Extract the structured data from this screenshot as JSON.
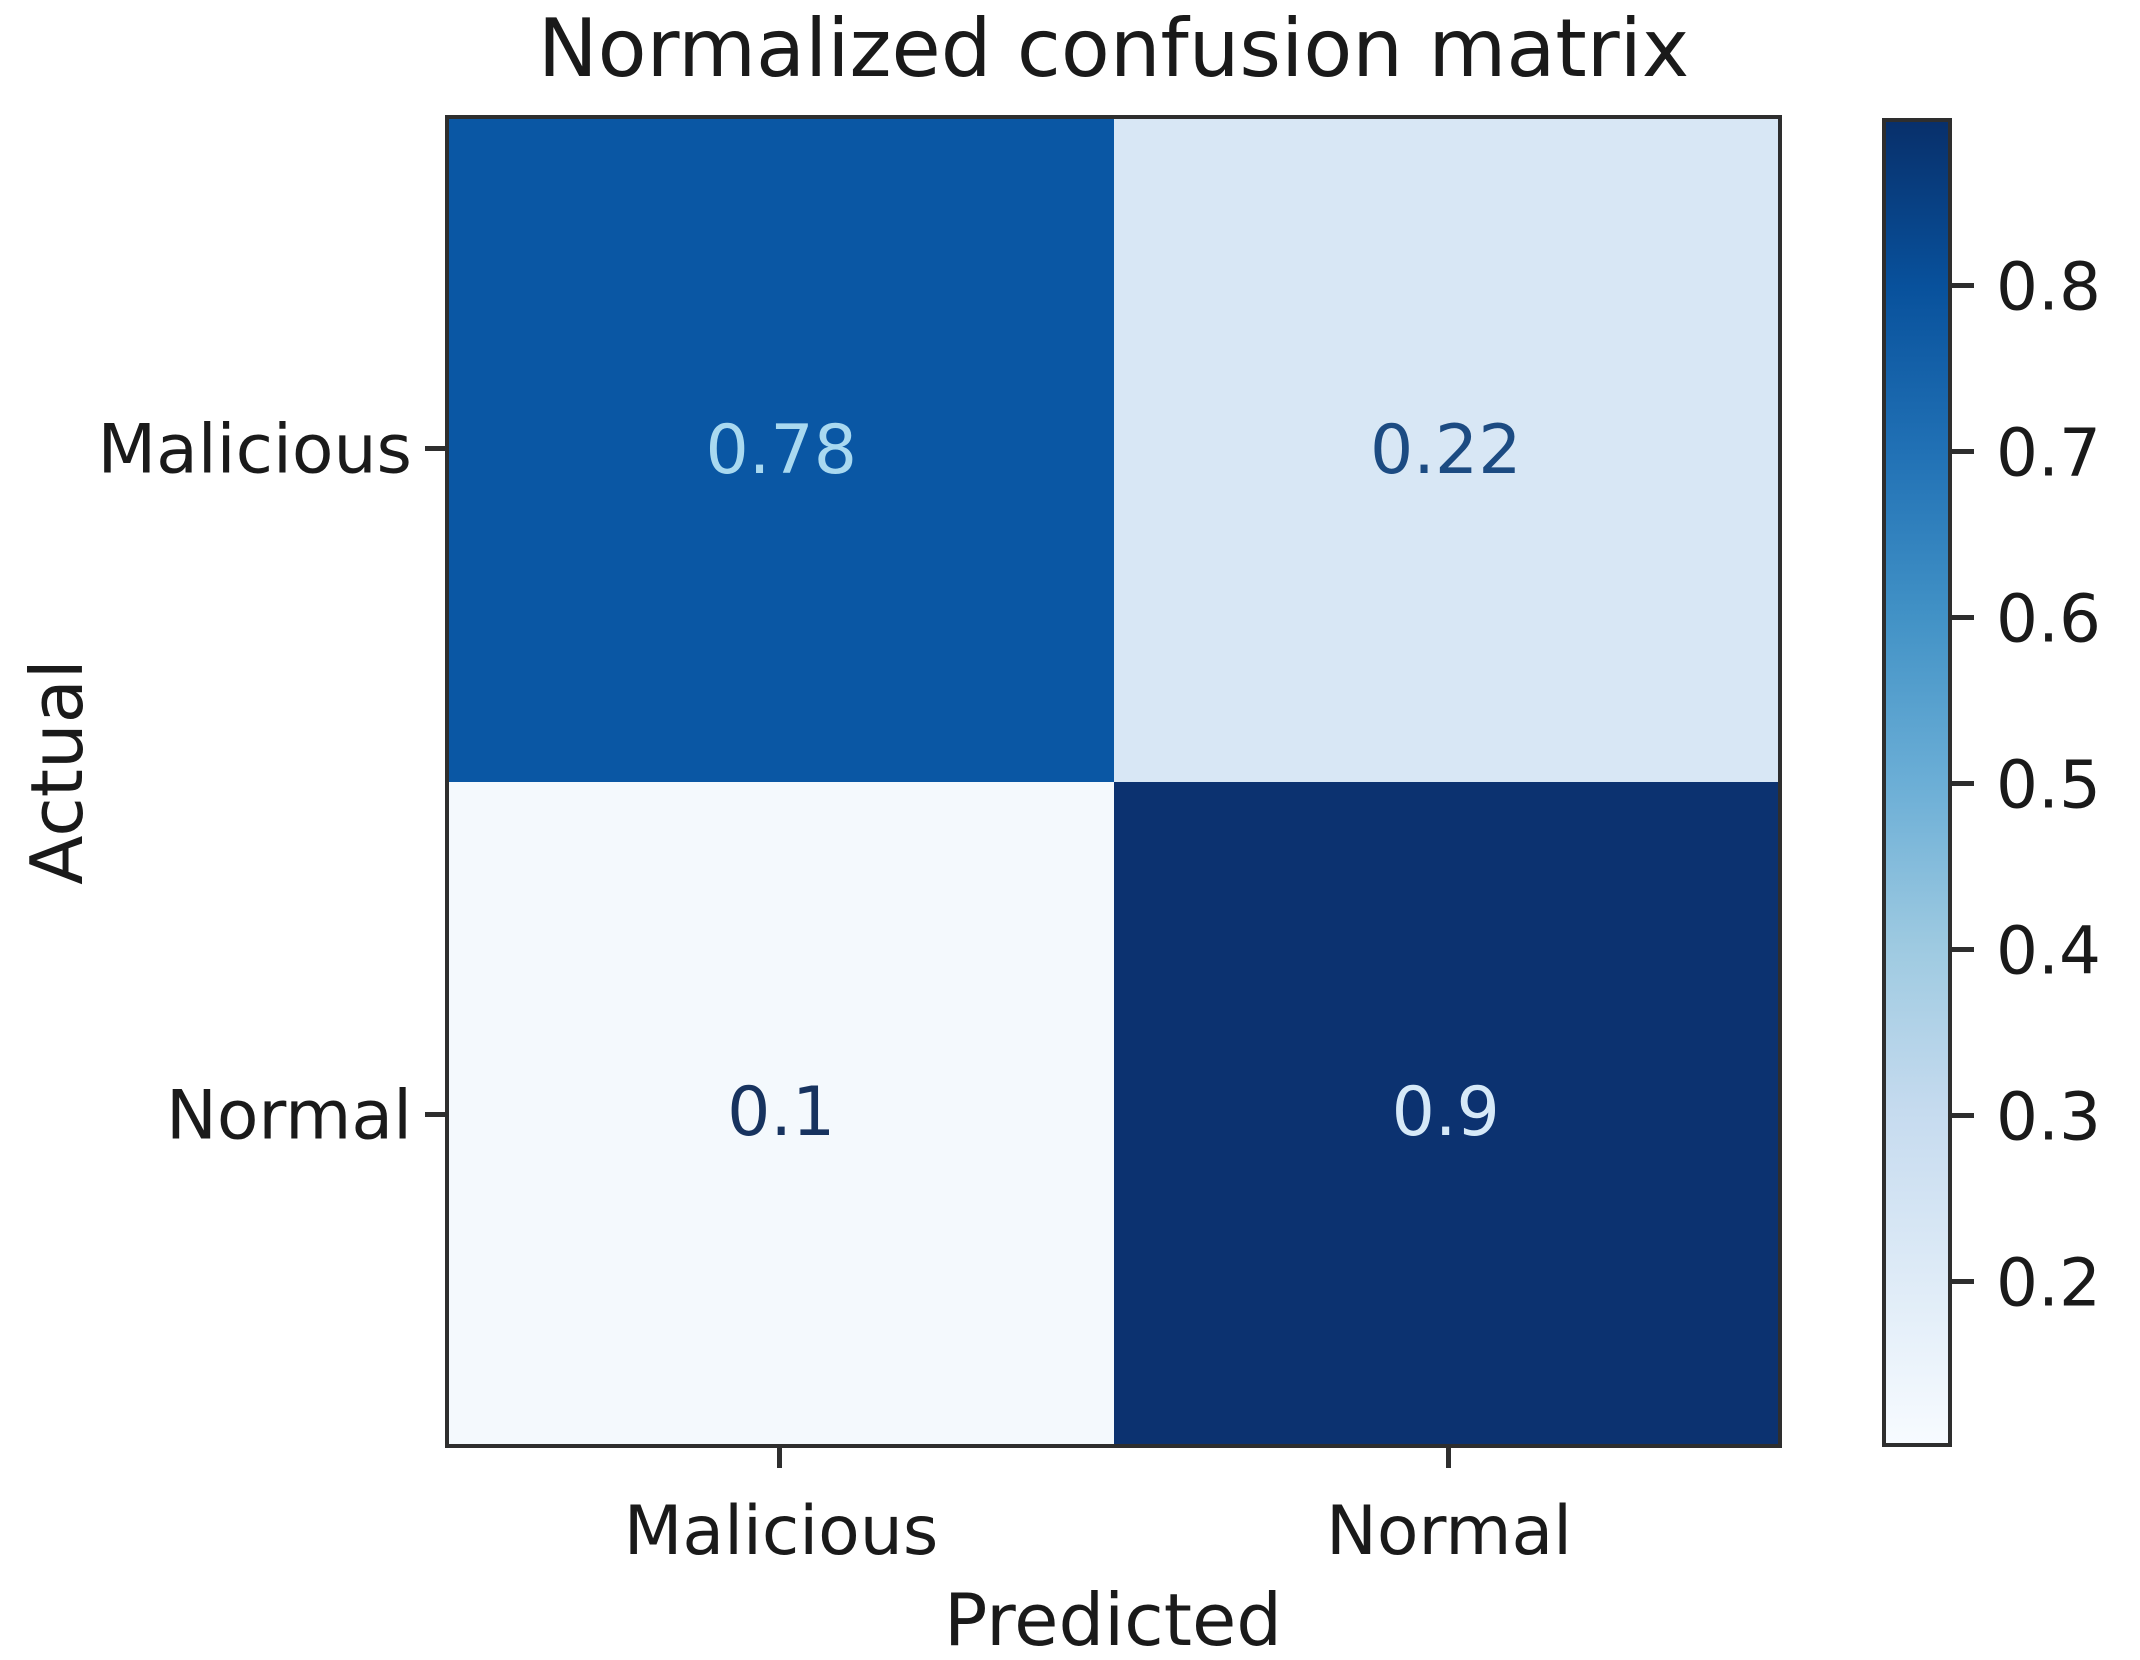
{
  "chart_data": {
    "type": "heatmap",
    "title": "Normalized confusion matrix",
    "xlabel": "Predicted",
    "ylabel": "Actual",
    "x_tick_labels": [
      "Malicious",
      "Normal"
    ],
    "y_tick_labels": [
      "Malicious",
      "Normal"
    ],
    "rows": [
      {
        "actual": "Malicious",
        "values": [
          0.78,
          0.22
        ]
      },
      {
        "actual": "Normal",
        "values": [
          0.1,
          0.9
        ]
      }
    ],
    "cells": [
      {
        "row": "Malicious",
        "col": "Malicious",
        "value": 0.78,
        "label": "0.78",
        "bg": "#0a57a4",
        "fg": "#a9d9f0"
      },
      {
        "row": "Malicious",
        "col": "Normal",
        "value": 0.22,
        "label": "0.22",
        "bg": "#d8e7f5",
        "fg": "#1c4b82"
      },
      {
        "row": "Normal",
        "col": "Malicious",
        "value": 0.1,
        "label": "0.1",
        "bg": "#f4f9fd",
        "fg": "#17335f"
      },
      {
        "row": "Normal",
        "col": "Normal",
        "value": 0.9,
        "label": "0.9",
        "bg": "#0c3270",
        "fg": "#d6e9f8"
      }
    ],
    "colormap": "Blues",
    "grid": "off",
    "legend": "off",
    "colorbar": {
      "min": 0.1,
      "max": 0.9,
      "tick_labels": [
        "0.8",
        "0.7",
        "0.6",
        "0.5",
        "0.4",
        "0.3",
        "0.2"
      ],
      "gradient_stops_bottom_to_top": [
        "#f7fbff",
        "#deebf7",
        "#c6dbef",
        "#9ecae1",
        "#6baed6",
        "#4292c6",
        "#2171b5",
        "#08519c",
        "#08306b"
      ]
    }
  }
}
